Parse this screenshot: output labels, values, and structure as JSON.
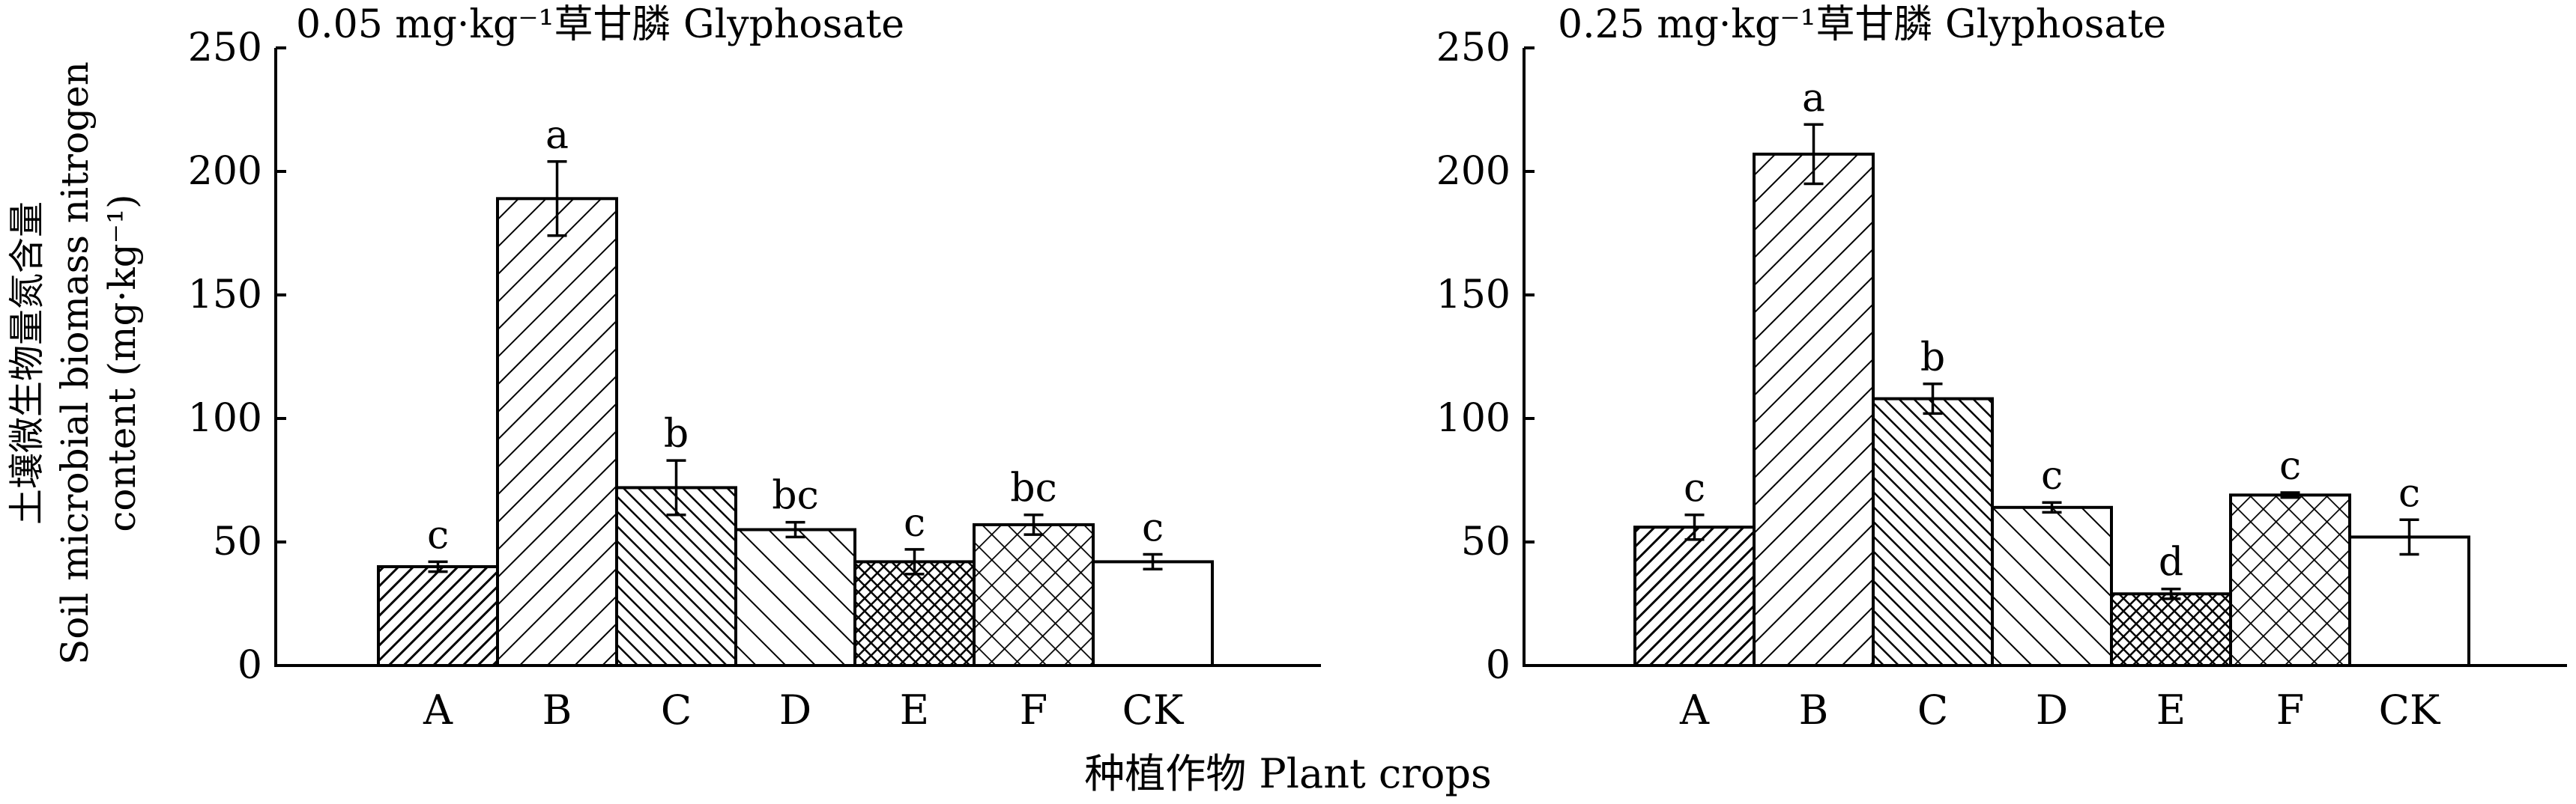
{
  "figure": {
    "ylabel_cn": "土壤微生物量氮含量",
    "ylabel_en_1": "Soil microbial biomass nitrogen",
    "ylabel_en_2": "content (mg·kg⁻¹)",
    "xlabel": "种植作物 Plant crops"
  },
  "chart_data": [
    {
      "type": "bar",
      "title": "0.05 mg·kg⁻¹草甘膦 Glyphosate",
      "xlabel": "种植作物 Plant crops",
      "ylabel": "土壤微生物量氮含量 Soil microbial biomass nitrogen content (mg·kg⁻¹)",
      "ylim": [
        0,
        250
      ],
      "yticks": [
        "0",
        "50",
        "100",
        "150",
        "200",
        "250"
      ],
      "categories": [
        "A",
        "B",
        "C",
        "D",
        "E",
        "F",
        "CK"
      ],
      "values": [
        40,
        189,
        72,
        55,
        42,
        57,
        42
      ],
      "errors": [
        2,
        15,
        11,
        3,
        5,
        4,
        3
      ],
      "letters": [
        "c",
        "a",
        "b",
        "bc",
        "c",
        "bc",
        "c"
      ],
      "patterns": [
        "diag-dense",
        "diag-wide",
        "back-dense",
        "back-wide",
        "cross-dense",
        "cross-wide",
        "none"
      ],
      "grid": false
    },
    {
      "type": "bar",
      "title": "0.25 mg·kg⁻¹草甘膦 Glyphosate",
      "xlabel": "种植作物 Plant crops",
      "ylabel": "土壤微生物量氮含量 Soil microbial biomass nitrogen content (mg·kg⁻¹)",
      "ylim": [
        0,
        250
      ],
      "yticks": [
        "0",
        "50",
        "100",
        "150",
        "200",
        "250"
      ],
      "categories": [
        "A",
        "B",
        "C",
        "D",
        "E",
        "F",
        "CK"
      ],
      "values": [
        56,
        207,
        108,
        64,
        29,
        69,
        52
      ],
      "errors": [
        5,
        12,
        6,
        2,
        2,
        1,
        7
      ],
      "letters": [
        "c",
        "a",
        "b",
        "c",
        "d",
        "c",
        "c"
      ],
      "patterns": [
        "diag-dense",
        "diag-wide",
        "back-dense",
        "back-wide",
        "cross-dense",
        "cross-wide",
        "none"
      ],
      "grid": false
    }
  ]
}
